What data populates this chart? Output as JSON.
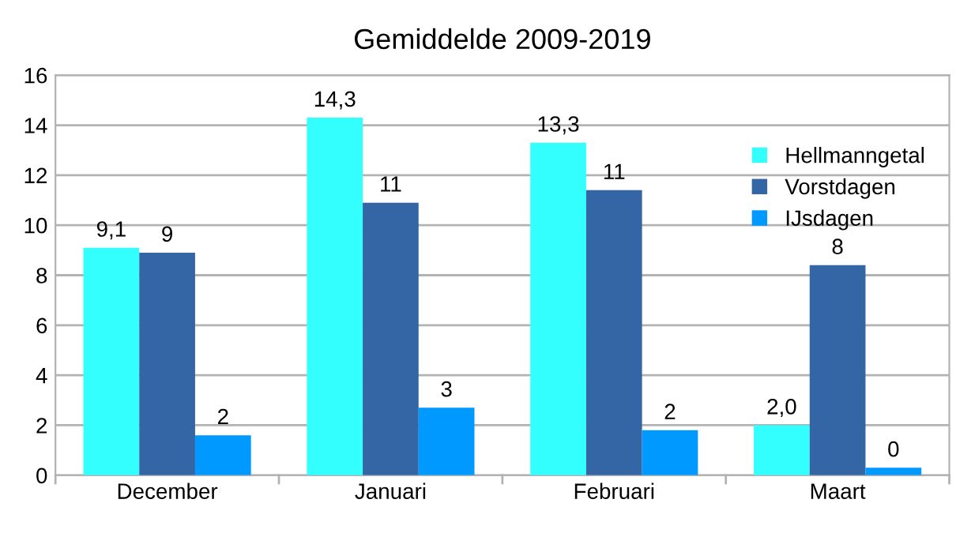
{
  "chart_data": {
    "type": "bar",
    "title": "Gemiddelde 2009-2019",
    "categories": [
      "December",
      "Januari",
      "Februari",
      "Maart"
    ],
    "series": [
      {
        "name": "Hellmanngetal",
        "color": "#33ffff",
        "values": [
          9.1,
          14.3,
          13.3,
          2.0
        ],
        "value_labels": [
          "9,1",
          "14,3",
          "13,3",
          "2,0"
        ]
      },
      {
        "name": "Vorstdagen",
        "color": "#3465a4",
        "values": [
          8.9,
          10.9,
          11.4,
          8.4
        ],
        "value_labels": [
          "9",
          "11",
          "11",
          "8"
        ]
      },
      {
        "name": "IJsdagen",
        "color": "#0099ff",
        "values": [
          1.6,
          2.7,
          1.8,
          0.3
        ],
        "value_labels": [
          "2",
          "3",
          "2",
          "0"
        ]
      }
    ],
    "ylim": [
      0,
      16
    ],
    "yticks": [
      0,
      2,
      4,
      6,
      8,
      10,
      12,
      14,
      16
    ],
    "grid": "y",
    "legend": "top right"
  }
}
